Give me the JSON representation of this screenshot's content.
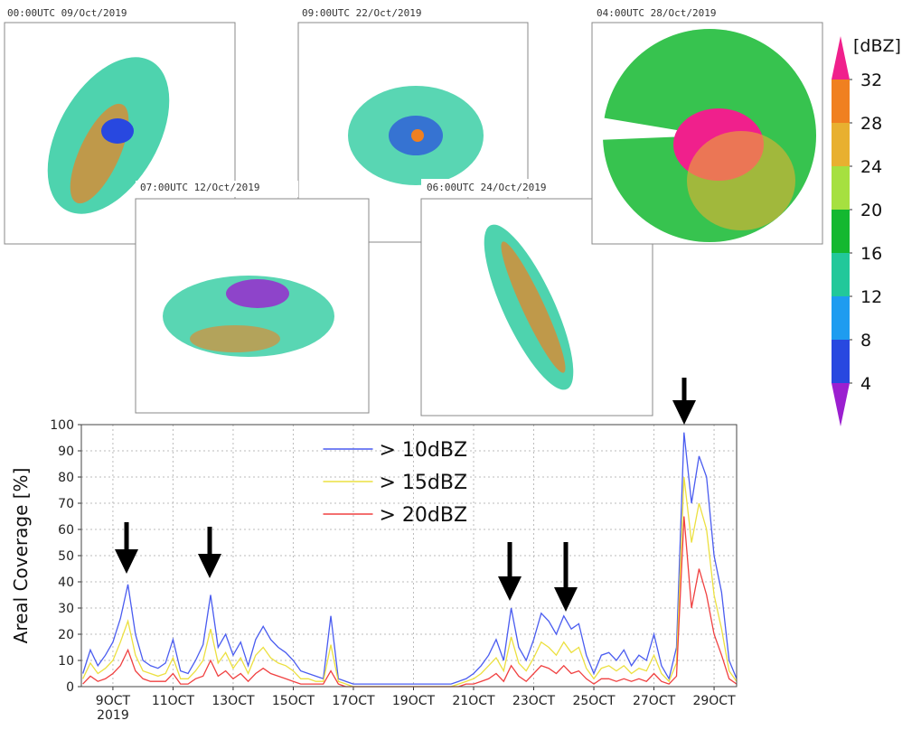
{
  "panels": [
    {
      "title": "00:00UTC 09/Oct/2019"
    },
    {
      "title": "07:00UTC 12/Oct/2019"
    },
    {
      "title": "09:00UTC 22/Oct/2019"
    },
    {
      "title": "06:00UTC 24/Oct/2019"
    },
    {
      "title": "04:00UTC 28/Oct/2019"
    }
  ],
  "chart_data": [
    {
      "type": "line",
      "ylabel": "Areal Coverage [%]",
      "x": [
        8,
        8.25,
        8.5,
        8.75,
        9,
        9.25,
        9.5,
        9.75,
        10,
        10.25,
        10.5,
        10.75,
        11,
        11.25,
        11.5,
        11.75,
        12,
        12.25,
        12.5,
        12.75,
        13,
        13.25,
        13.5,
        13.75,
        14,
        14.25,
        14.5,
        14.75,
        15,
        15.25,
        15.5,
        15.75,
        16,
        16.25,
        16.5,
        16.75,
        17,
        17.25,
        17.5,
        17.75,
        18,
        18.25,
        18.5,
        18.75,
        19,
        19.25,
        19.5,
        19.75,
        20,
        20.25,
        20.5,
        20.75,
        21,
        21.25,
        21.5,
        21.75,
        22,
        22.25,
        22.5,
        22.75,
        23,
        23.25,
        23.5,
        23.75,
        24,
        24.25,
        24.5,
        24.75,
        25,
        25.25,
        25.5,
        25.75,
        26,
        26.25,
        26.5,
        26.75,
        27,
        27.25,
        27.5,
        27.75,
        28,
        28.25,
        28.5,
        28.75,
        29,
        29.25,
        29.5,
        29.75
      ],
      "series": [
        {
          "name": "> 10dBZ",
          "color": "#4a5cf0",
          "values": [
            5,
            14,
            8,
            12,
            17,
            26,
            39,
            20,
            10,
            8,
            7,
            9,
            18,
            6,
            5,
            10,
            16,
            35,
            15,
            20,
            12,
            17,
            8,
            18,
            23,
            18,
            15,
            13,
            10,
            6,
            5,
            4,
            3,
            27,
            3,
            2,
            1,
            1,
            1,
            1,
            1,
            1,
            1,
            1,
            1,
            1,
            1,
            1,
            1,
            1,
            2,
            3,
            5,
            8,
            12,
            18,
            10,
            30,
            15,
            10,
            18,
            28,
            25,
            20,
            27,
            22,
            24,
            12,
            5,
            12,
            13,
            10,
            14,
            8,
            12,
            10,
            20,
            8,
            3,
            15,
            97,
            70,
            88,
            80,
            50,
            36,
            10,
            3
          ]
        },
        {
          "name": "> 15dBZ",
          "color": "#ece040",
          "values": [
            3,
            9,
            5,
            7,
            10,
            17,
            25,
            12,
            6,
            5,
            4,
            5,
            11,
            3,
            3,
            6,
            10,
            22,
            9,
            13,
            7,
            11,
            5,
            12,
            15,
            11,
            9,
            8,
            6,
            3,
            3,
            2,
            2,
            16,
            2,
            1,
            0,
            0,
            0,
            0,
            0,
            0,
            0,
            0,
            0,
            0,
            0,
            0,
            0,
            0,
            1,
            2,
            3,
            5,
            8,
            11,
            6,
            19,
            9,
            6,
            11,
            17,
            15,
            12,
            17,
            13,
            15,
            7,
            3,
            7,
            8,
            6,
            8,
            5,
            7,
            6,
            12,
            5,
            2,
            9,
            80,
            55,
            70,
            60,
            35,
            22,
            6,
            2
          ]
        },
        {
          "name": "> 20dBZ",
          "color": "#f04040",
          "values": [
            1,
            4,
            2,
            3,
            5,
            8,
            14,
            6,
            3,
            2,
            2,
            2,
            5,
            1,
            1,
            3,
            4,
            10,
            4,
            6,
            3,
            5,
            2,
            5,
            7,
            5,
            4,
            3,
            2,
            1,
            1,
            1,
            1,
            6,
            1,
            0,
            0,
            0,
            0,
            0,
            0,
            0,
            0,
            0,
            0,
            0,
            0,
            0,
            0,
            0,
            0,
            1,
            1,
            2,
            3,
            5,
            2,
            8,
            4,
            2,
            5,
            8,
            7,
            5,
            8,
            5,
            6,
            3,
            1,
            3,
            3,
            2,
            3,
            2,
            3,
            2,
            5,
            2,
            1,
            4,
            65,
            30,
            45,
            35,
            20,
            12,
            3,
            1
          ]
        }
      ],
      "xlim": [
        7.95,
        29.75
      ],
      "ylim": [
        0,
        100
      ],
      "xticks": [
        {
          "value": 9,
          "label": "9OCT"
        },
        {
          "value": 11,
          "label": "11OCT"
        },
        {
          "value": 13,
          "label": "13OCT"
        },
        {
          "value": 15,
          "label": "15OCT"
        },
        {
          "value": 17,
          "label": "17OCT"
        },
        {
          "value": 19,
          "label": "19OCT"
        },
        {
          "value": 21,
          "label": "21OCT"
        },
        {
          "value": 23,
          "label": "23OCT"
        },
        {
          "value": 25,
          "label": "25OCT"
        },
        {
          "value": 27,
          "label": "27OCT"
        },
        {
          "value": 29,
          "label": "29OCT"
        }
      ],
      "xtick_sublabel": "2019",
      "yticks": [
        0,
        10,
        20,
        30,
        40,
        50,
        60,
        70,
        80,
        90,
        100
      ],
      "grid": true,
      "legend": "top"
    },
    {
      "type": "colorbar",
      "title": "[dBZ]",
      "ylim": [
        0,
        36
      ],
      "yticks": [
        4,
        8,
        12,
        16,
        20,
        24,
        28,
        32
      ],
      "colors": [
        "#9b1fd0",
        "#2848e0",
        "#1e9cf0",
        "#22c89a",
        "#14b830",
        "#a6e040",
        "#e8b030",
        "#f08020",
        "#f0208c"
      ]
    }
  ]
}
